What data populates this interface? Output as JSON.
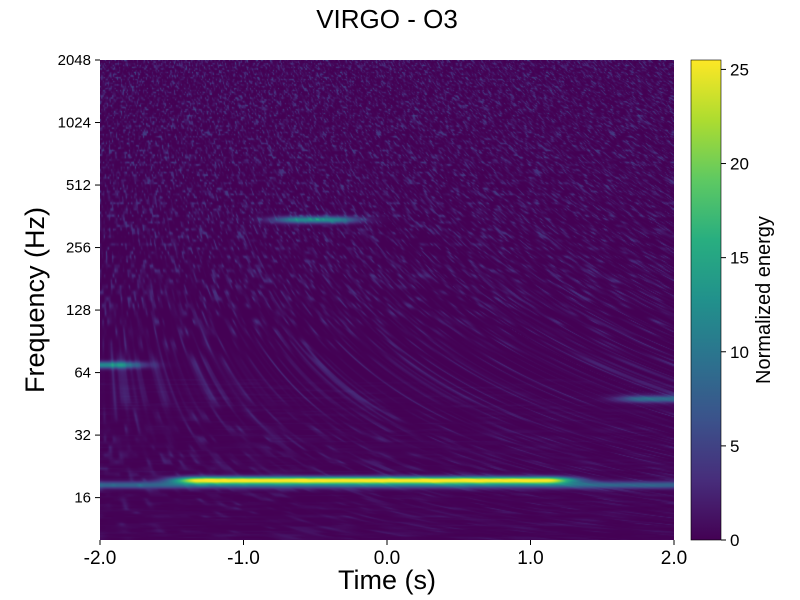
{
  "chart_data": {
    "type": "heatmap",
    "title": "VIRGO - O3",
    "xlabel": "Time (s)",
    "ylabel": "Frequency (Hz)",
    "colorbar_label": "Normalized energy",
    "x_range": [
      -2.0,
      2.0
    ],
    "x_ticks": [
      -2.0,
      -1.0,
      0.0,
      1.0,
      2.0
    ],
    "x_tick_labels": [
      "-2.0",
      "-1.0",
      "0.0",
      "1.0",
      "2.0"
    ],
    "y_scale": "log2",
    "y_range": [
      10,
      2048
    ],
    "y_ticks": [
      16,
      32,
      64,
      128,
      256,
      512,
      1024,
      2048
    ],
    "y_tick_labels": [
      "16",
      "32",
      "64",
      "128",
      "256",
      "512",
      "1024",
      "2048"
    ],
    "colorbar_range": [
      0,
      25.5
    ],
    "colorbar_ticks": [
      0,
      5,
      10,
      15,
      20,
      25
    ],
    "colorbar_tick_labels": [
      "0",
      "5",
      "10",
      "15",
      "20",
      "25"
    ],
    "colormap": "viridis",
    "features": [
      {
        "t": [
          -1.3,
          1.1
        ],
        "f": [
          19,
          20
        ],
        "energy": 25
      },
      {
        "t": [
          -2.0,
          2.0
        ],
        "f": 18.5,
        "energy": 8
      },
      {
        "t": [
          -2.0,
          -1.9
        ],
        "f": 70,
        "energy": 12
      },
      {
        "t": [
          -0.6,
          -0.4
        ],
        "f": 350,
        "energy": 12
      },
      {
        "t": [
          1.8,
          2.0
        ],
        "f": 48,
        "energy": 9
      }
    ]
  }
}
